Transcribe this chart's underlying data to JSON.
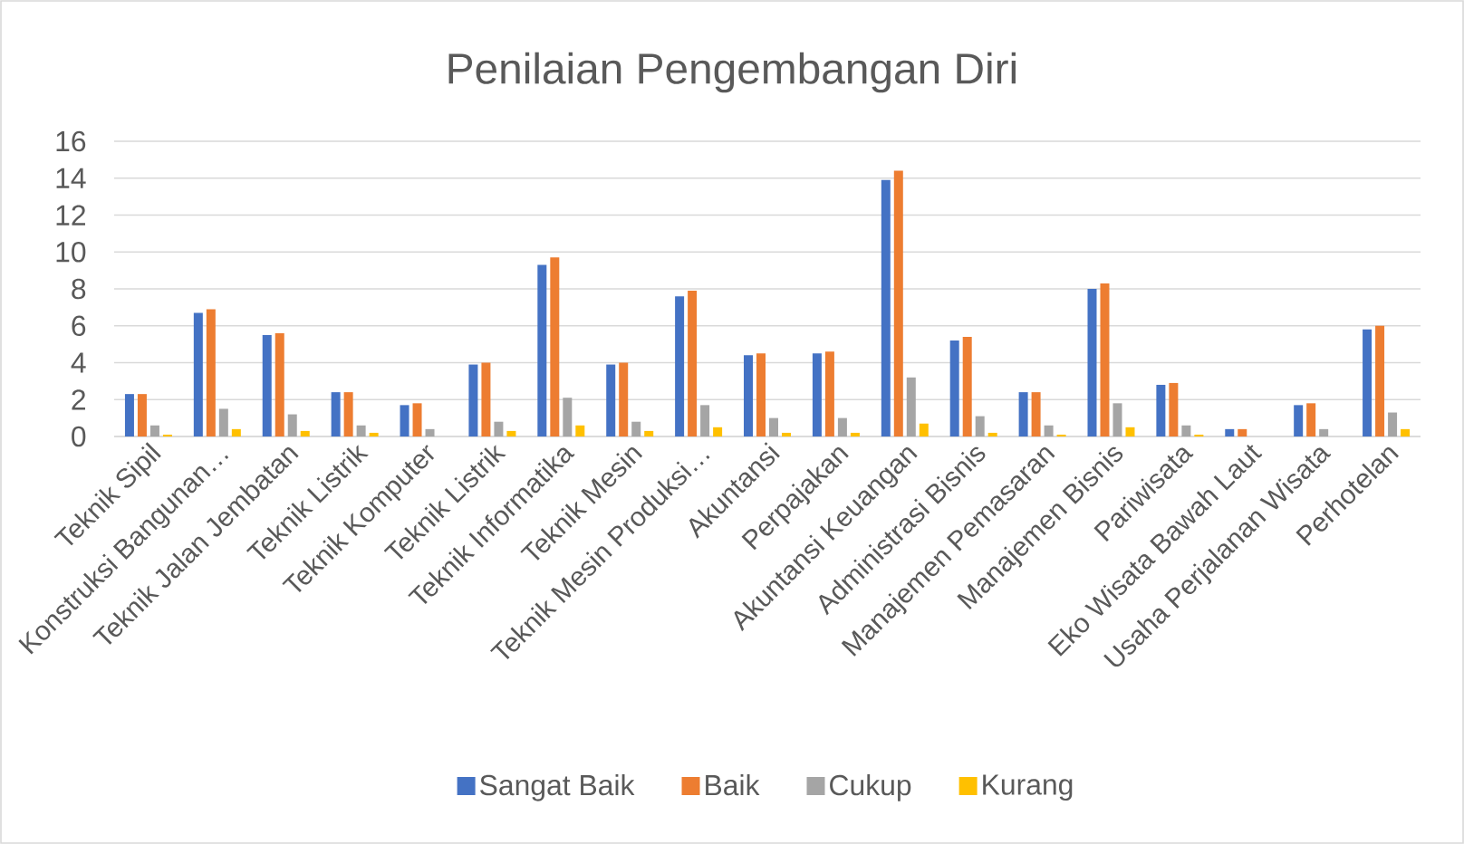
{
  "chart_data": {
    "type": "bar",
    "title": "Penilaian Pengembangan Diri",
    "categories": [
      "Teknik Sipil",
      "Konstruksi Bangunan…",
      "Teknik Jalan Jembatan",
      "Teknik Listrik",
      "Teknik Komputer",
      "Teknik Listrik",
      "Teknik Informatika",
      "Teknik Mesin",
      "Teknik Mesin Produksi…",
      "Akuntansi",
      "Perpajakan",
      "Akuntansi Keuangan",
      "Administrasi Bisnis",
      "Manajemen Pemasaran",
      "Manajemen Bisnis",
      "Pariwisata",
      "Eko Wisata Bawah Laut",
      "Usaha Perjalanan Wisata",
      "Perhotelan"
    ],
    "series": [
      {
        "name": "Sangat Baik",
        "color": "#4472c4",
        "values": [
          2.3,
          6.7,
          5.5,
          2.4,
          1.7,
          3.9,
          9.3,
          3.9,
          7.6,
          4.4,
          4.5,
          13.9,
          5.2,
          2.4,
          8.0,
          2.8,
          0.4,
          1.7,
          5.8
        ]
      },
      {
        "name": "Baik",
        "color": "#ed7d31",
        "values": [
          2.3,
          6.9,
          5.6,
          2.4,
          1.8,
          4.0,
          9.7,
          4.0,
          7.9,
          4.5,
          4.6,
          14.4,
          5.4,
          2.4,
          8.3,
          2.9,
          0.4,
          1.8,
          6.0
        ]
      },
      {
        "name": "Cukup",
        "color": "#a5a5a5",
        "values": [
          0.6,
          1.5,
          1.2,
          0.6,
          0.4,
          0.8,
          2.1,
          0.8,
          1.7,
          1.0,
          1.0,
          3.2,
          1.1,
          0.6,
          1.8,
          0.6,
          0,
          0.4,
          1.3
        ]
      },
      {
        "name": "Kurang",
        "color": "#ffc000",
        "values": [
          0.1,
          0.4,
          0.3,
          0.2,
          0,
          0.3,
          0.6,
          0.3,
          0.5,
          0.2,
          0.2,
          0.7,
          0.2,
          0.1,
          0.5,
          0.1,
          0,
          0,
          0.4
        ]
      }
    ],
    "ylim": [
      0,
      16
    ],
    "yticks": [
      0,
      2,
      4,
      6,
      8,
      10,
      12,
      14,
      16
    ],
    "grid": "y",
    "legend": "bottom"
  }
}
